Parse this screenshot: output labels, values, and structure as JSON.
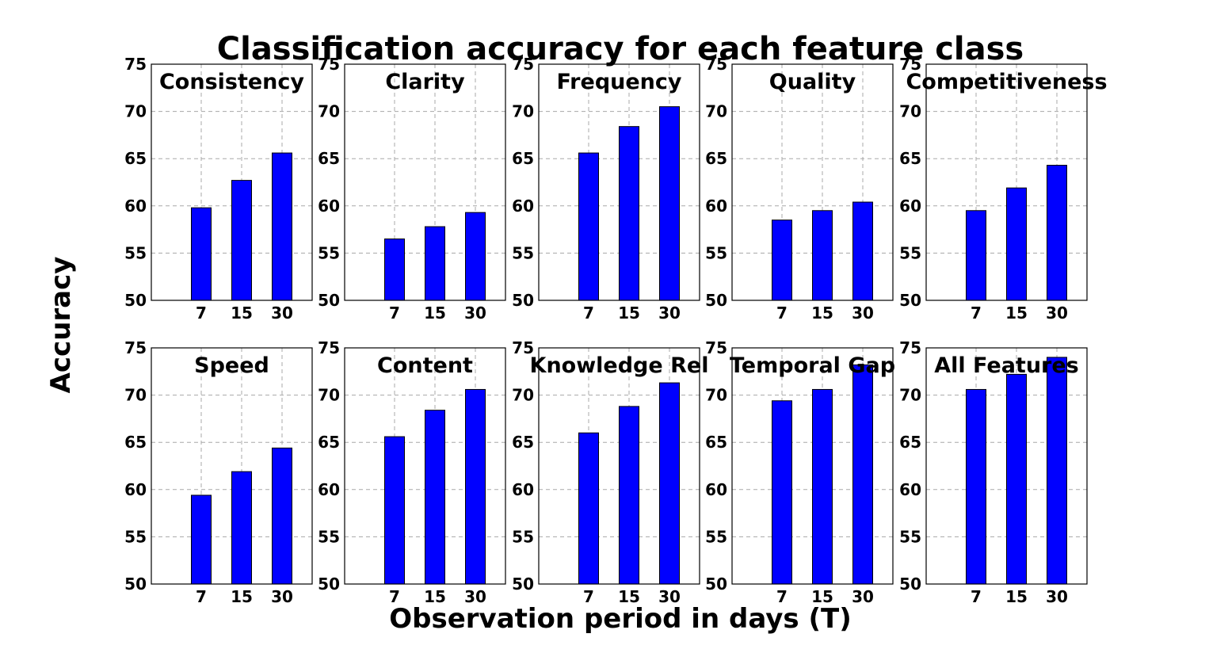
{
  "chart_data": {
    "type": "bar",
    "title": "Classification accuracy for each feature class",
    "xlabel": "Observation period in days (T)",
    "ylabel": "Accuracy",
    "ylim": [
      50,
      75
    ],
    "yticks": [
      50,
      55,
      60,
      65,
      70,
      75
    ],
    "categories": [
      "7",
      "15",
      "30"
    ],
    "bar_color": "#0000ff",
    "grid": true,
    "panels": [
      {
        "title": "Consistency",
        "values": [
          59.8,
          62.7,
          65.6
        ]
      },
      {
        "title": "Clarity",
        "values": [
          56.5,
          57.8,
          59.3
        ]
      },
      {
        "title": "Frequency",
        "values": [
          65.6,
          68.4,
          70.5
        ]
      },
      {
        "title": "Quality",
        "values": [
          58.5,
          59.5,
          60.4
        ]
      },
      {
        "title": "Competitiveness",
        "values": [
          59.5,
          61.9,
          64.3
        ]
      },
      {
        "title": "Speed",
        "values": [
          59.4,
          61.9,
          64.4
        ]
      },
      {
        "title": "Content",
        "values": [
          65.6,
          68.4,
          70.6
        ]
      },
      {
        "title": "Knowledge Rel",
        "values": [
          66.0,
          68.8,
          71.3
        ]
      },
      {
        "title": "Temporal Gap",
        "values": [
          69.4,
          70.6,
          73.2
        ]
      },
      {
        "title": "All Features",
        "values": [
          70.6,
          72.2,
          74.0
        ]
      }
    ]
  }
}
